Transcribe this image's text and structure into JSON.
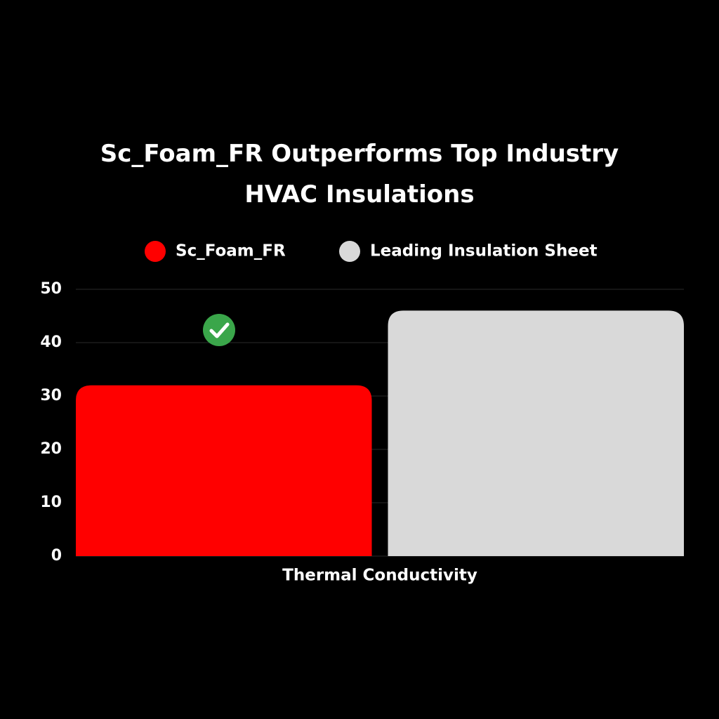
{
  "chart_data": {
    "type": "bar",
    "title": "Sc_Foam_FR Outperforms Top Industry HVAC Insulations",
    "categories": [
      "Thermal Conductivity"
    ],
    "series": [
      {
        "name": "Sc_Foam_FR",
        "color": "#ff0000",
        "values": [
          32
        ]
      },
      {
        "name": "Leading Insulation Sheet",
        "color": "#d9d9d9",
        "values": [
          46
        ]
      }
    ],
    "ylim": [
      0,
      50
    ],
    "yticks": [
      0,
      10,
      20,
      30,
      40,
      50
    ],
    "grid": true
  }
}
